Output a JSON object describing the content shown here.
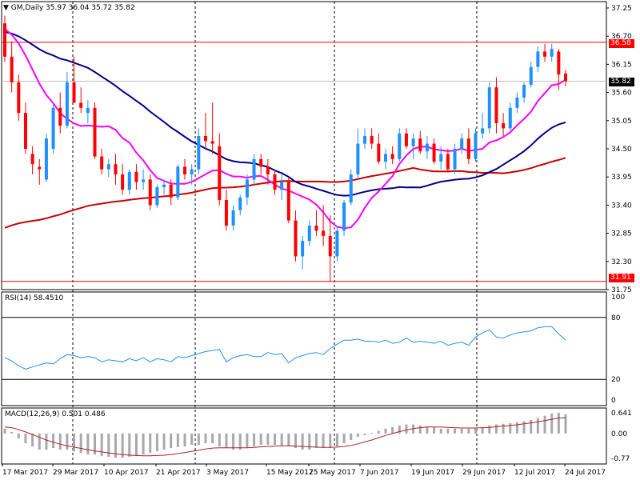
{
  "header": {
    "symbol_text": "GM,Daily",
    "ohlc_text": "35.97 36.04 35.72 35.82"
  },
  "colors": {
    "bull": "#1e90ff",
    "bear": "#ff0000",
    "ma_fast": "#ff00ff",
    "ma_mid": "#00008b",
    "ma_slow": "#cc0000",
    "rsi": "#1e90ff",
    "macd_signal": "#b22222",
    "macd_hist": "#a9a9a9"
  },
  "chart_data": {
    "type": "candlestick",
    "xlabels": [
      "17 Mar 2017",
      "29 Mar 2017",
      "10 Apr 2017",
      "21 Apr 2017",
      "3 May 2017",
      "15 May 2017",
      "25 May 2017",
      "7 Jun 2017",
      "19 Jun 2017",
      "29 Jun 2017",
      "12 Jul 2017",
      "24 Jul 2017"
    ],
    "price_axis": {
      "ticks": [
        "37.25",
        "36.70",
        "36.15",
        "35.60",
        "35.05",
        "34.50",
        "33.95",
        "33.40",
        "32.85",
        "32.30",
        "31.75"
      ],
      "ylim": [
        31.75,
        37.25
      ]
    },
    "levels": {
      "upper": "36.58",
      "lower": "31.91",
      "current": "35.82"
    },
    "candles": [
      [
        36.95,
        37.1,
        36.2,
        36.3
      ],
      [
        36.3,
        36.6,
        35.6,
        35.8
      ],
      [
        35.8,
        35.95,
        35.05,
        35.2
      ],
      [
        35.2,
        35.4,
        34.4,
        34.5
      ],
      [
        34.4,
        34.55,
        34.0,
        34.2
      ],
      [
        34.15,
        34.3,
        33.8,
        34.1
      ],
      [
        33.9,
        34.8,
        33.85,
        34.7
      ],
      [
        34.5,
        35.4,
        34.4,
        35.3
      ],
      [
        35.3,
        35.6,
        34.8,
        34.95
      ],
      [
        34.95,
        36.0,
        34.9,
        35.8
      ],
      [
        35.8,
        36.3,
        35.4,
        35.4
      ],
      [
        35.4,
        35.7,
        35.2,
        35.3
      ],
      [
        35.2,
        35.45,
        35.0,
        35.3
      ],
      [
        35.3,
        35.4,
        34.3,
        34.35
      ],
      [
        34.35,
        34.5,
        34.0,
        34.1
      ],
      [
        34.1,
        34.3,
        33.95,
        34.2
      ],
      [
        34.2,
        34.4,
        33.8,
        34.0
      ],
      [
        34.0,
        34.2,
        33.6,
        33.7
      ],
      [
        33.7,
        34.1,
        33.6,
        34.05
      ],
      [
        34.05,
        34.2,
        33.7,
        33.85
      ],
      [
        33.85,
        34.1,
        33.7,
        33.9
      ],
      [
        33.9,
        34.0,
        33.3,
        33.4
      ],
      [
        33.4,
        33.8,
        33.35,
        33.75
      ],
      [
        33.75,
        33.9,
        33.6,
        33.8
      ],
      [
        33.8,
        33.9,
        33.4,
        33.55
      ],
      [
        33.55,
        34.2,
        33.5,
        34.15
      ],
      [
        34.15,
        34.3,
        33.9,
        34.0
      ],
      [
        34.0,
        34.2,
        33.8,
        34.1
      ],
      [
        34.1,
        34.9,
        34.0,
        34.75
      ],
      [
        34.75,
        35.2,
        34.5,
        34.65
      ],
      [
        34.65,
        35.4,
        34.4,
        34.6
      ],
      [
        34.55,
        34.8,
        33.4,
        33.5
      ],
      [
        33.5,
        33.7,
        32.9,
        33.0
      ],
      [
        33.0,
        33.4,
        32.9,
        33.3
      ],
      [
        33.3,
        33.6,
        33.2,
        33.55
      ],
      [
        33.55,
        34.0,
        33.4,
        33.9
      ],
      [
        33.9,
        34.4,
        33.8,
        34.3
      ],
      [
        34.3,
        34.4,
        34.0,
        34.15
      ],
      [
        34.15,
        34.3,
        33.8,
        34.0
      ],
      [
        34.0,
        34.1,
        33.6,
        33.7
      ],
      [
        33.7,
        34.0,
        33.5,
        33.85
      ],
      [
        33.85,
        33.95,
        33.05,
        33.1
      ],
      [
        33.1,
        33.3,
        32.3,
        32.4
      ],
      [
        32.4,
        32.8,
        32.15,
        32.7
      ],
      [
        32.7,
        33.1,
        32.6,
        33.0
      ],
      [
        33.0,
        33.3,
        32.8,
        32.9
      ],
      [
        32.9,
        33.4,
        32.6,
        32.8
      ],
      [
        32.8,
        33.2,
        31.91,
        32.4
      ],
      [
        32.4,
        33.0,
        32.3,
        32.9
      ],
      [
        32.9,
        33.5,
        32.8,
        33.45
      ],
      [
        33.45,
        34.1,
        33.4,
        34.0
      ],
      [
        34.0,
        34.9,
        33.9,
        34.6
      ],
      [
        34.6,
        34.9,
        34.5,
        34.75
      ],
      [
        34.75,
        34.9,
        34.5,
        34.6
      ],
      [
        34.6,
        34.8,
        34.2,
        34.25
      ],
      [
        34.25,
        34.5,
        34.1,
        34.4
      ],
      [
        34.4,
        34.55,
        34.2,
        34.3
      ],
      [
        34.3,
        34.9,
        34.25,
        34.8
      ],
      [
        34.8,
        34.9,
        34.5,
        34.55
      ],
      [
        34.55,
        34.8,
        34.3,
        34.7
      ],
      [
        34.7,
        34.85,
        34.4,
        34.45
      ],
      [
        34.45,
        34.75,
        34.3,
        34.6
      ],
      [
        34.6,
        34.7,
        34.2,
        34.25
      ],
      [
        34.25,
        34.55,
        34.1,
        34.4
      ],
      [
        34.4,
        34.5,
        34.05,
        34.1
      ],
      [
        34.1,
        34.6,
        34.0,
        34.5
      ],
      [
        34.5,
        34.8,
        34.4,
        34.7
      ],
      [
        34.7,
        34.9,
        34.2,
        34.3
      ],
      [
        34.3,
        34.9,
        34.25,
        34.8
      ],
      [
        34.8,
        35.2,
        34.7,
        34.9
      ],
      [
        34.9,
        35.8,
        34.8,
        35.7
      ],
      [
        35.7,
        35.9,
        34.8,
        35.0
      ],
      [
        35.0,
        35.2,
        34.75,
        34.9
      ],
      [
        34.9,
        35.4,
        34.85,
        35.3
      ],
      [
        35.3,
        35.6,
        35.2,
        35.5
      ],
      [
        35.5,
        35.8,
        35.4,
        35.75
      ],
      [
        35.75,
        36.2,
        35.7,
        36.1
      ],
      [
        36.1,
        36.5,
        36.0,
        36.4
      ],
      [
        36.4,
        36.55,
        36.2,
        36.3
      ],
      [
        36.3,
        36.55,
        36.2,
        36.45
      ],
      [
        36.4,
        36.45,
        35.65,
        35.95
      ],
      [
        35.97,
        36.04,
        35.72,
        35.82
      ]
    ],
    "rsi": {
      "label": "RSI(14) 58.4510",
      "ticks": [
        "100",
        "80",
        "20",
        "0"
      ],
      "ylim": [
        0,
        100
      ],
      "levels": [
        80,
        20
      ],
      "values": [
        41,
        38,
        33,
        30,
        32,
        34,
        36,
        35,
        40,
        44,
        43,
        41,
        42,
        41,
        37,
        39,
        38,
        37,
        40,
        38,
        41,
        37,
        40,
        39,
        37,
        42,
        41,
        43,
        45,
        47,
        48,
        49,
        37,
        41,
        43,
        44,
        42,
        42,
        46,
        44,
        45,
        36,
        41,
        43,
        45,
        46,
        44,
        50,
        54,
        58,
        58,
        59,
        57,
        57,
        56,
        58,
        55,
        56,
        60,
        56,
        57,
        56,
        55,
        57,
        53,
        55,
        56,
        53,
        61,
        65,
        68,
        61,
        60,
        63,
        65,
        66,
        67,
        70,
        71,
        71,
        64,
        58
      ]
    },
    "macd": {
      "label": "MACD(12,26,9) 0.501 0.486",
      "ticks": [
        "0.641",
        "0.00",
        "-0.77"
      ],
      "ylim": [
        -0.77,
        0.641
      ],
      "histogram": [
        0.15,
        0.05,
        -0.15,
        -0.3,
        -0.4,
        -0.5,
        -0.5,
        -0.45,
        -0.5,
        -0.5,
        -0.55,
        -0.6,
        -0.65,
        -0.65,
        -0.7,
        -0.72,
        -0.75,
        -0.75,
        -0.72,
        -0.7,
        -0.65,
        -0.6,
        -0.55,
        -0.5,
        -0.45,
        -0.42,
        -0.4,
        -0.35,
        -0.35,
        -0.3,
        -0.3,
        -0.4,
        -0.45,
        -0.5,
        -0.5,
        -0.45,
        -0.4,
        -0.35,
        -0.35,
        -0.35,
        -0.38,
        -0.4,
        -0.45,
        -0.5,
        -0.5,
        -0.45,
        -0.45,
        -0.45,
        -0.4,
        -0.3,
        -0.2,
        -0.1,
        -0.05,
        0.02,
        0.08,
        0.15,
        0.2,
        0.25,
        0.28,
        0.28,
        0.25,
        0.22,
        0.2,
        0.15,
        0.15,
        0.15,
        0.15,
        0.15,
        0.17,
        0.2,
        0.25,
        0.28,
        0.3,
        0.32,
        0.35,
        0.38,
        0.42,
        0.48,
        0.55,
        0.62,
        0.64,
        0.6
      ],
      "signal": [
        0.2,
        0.18,
        0.12,
        0.05,
        -0.03,
        -0.12,
        -0.2,
        -0.27,
        -0.33,
        -0.38,
        -0.42,
        -0.46,
        -0.5,
        -0.54,
        -0.57,
        -0.6,
        -0.63,
        -0.65,
        -0.67,
        -0.68,
        -0.69,
        -0.69,
        -0.68,
        -0.67,
        -0.65,
        -0.62,
        -0.59,
        -0.55,
        -0.52,
        -0.48,
        -0.45,
        -0.44,
        -0.44,
        -0.44,
        -0.44,
        -0.44,
        -0.43,
        -0.41,
        -0.4,
        -0.39,
        -0.38,
        -0.38,
        -0.39,
        -0.4,
        -0.41,
        -0.42,
        -0.43,
        -0.43,
        -0.42,
        -0.4,
        -0.37,
        -0.32,
        -0.26,
        -0.2,
        -0.13,
        -0.06,
        0.0,
        0.06,
        0.11,
        0.15,
        0.18,
        0.2,
        0.2,
        0.2,
        0.19,
        0.18,
        0.17,
        0.17,
        0.17,
        0.18,
        0.19,
        0.21,
        0.23,
        0.25,
        0.27,
        0.3,
        0.33,
        0.36,
        0.4,
        0.44,
        0.48,
        0.49
      ]
    }
  }
}
